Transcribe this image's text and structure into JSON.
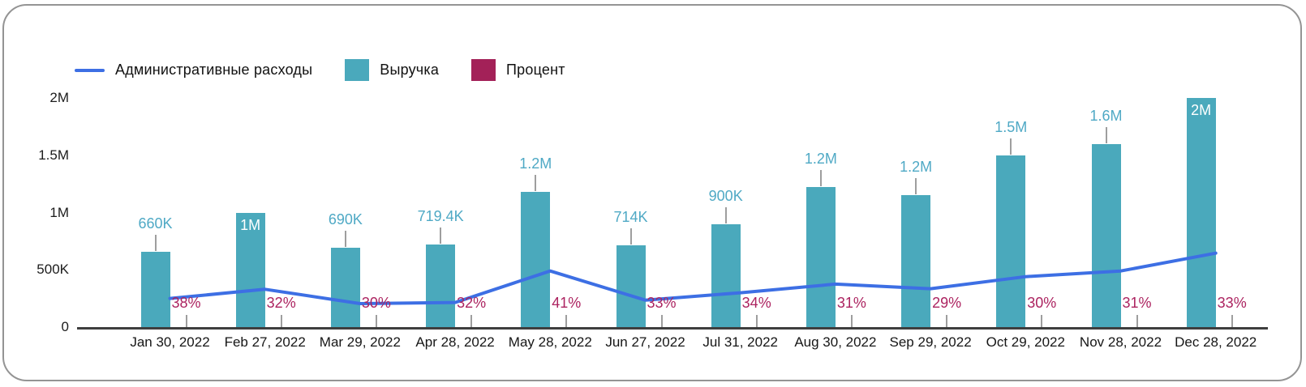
{
  "chart_data": {
    "type": "combo",
    "title": "",
    "grid": false,
    "legend_position": "top",
    "ylim": [
      0,
      2000000
    ],
    "y_ticks": [
      "0",
      "500K",
      "1M",
      "1.5M",
      "2M"
    ],
    "x_labels": [
      "Jan 30, 2022",
      "Feb 27, 2022",
      "Mar 29, 2022",
      "Apr 28, 2022",
      "May 28, 2022",
      "Jun 27, 2022",
      "Jul 31, 2022",
      "Aug 30, 2022",
      "Sep 29, 2022",
      "Oct 29, 2022",
      "Nov 28, 2022",
      "Dec 28, 2022"
    ],
    "series": [
      {
        "name": "Административные расходы",
        "type": "line",
        "color": "#3D6FE4",
        "values": [
          250000,
          330000,
          205000,
          215000,
          490000,
          235000,
          300000,
          375000,
          335000,
          440000,
          490000,
          645000
        ]
      },
      {
        "name": "Выручка",
        "type": "bar",
        "color": "#4AA9BC",
        "label_color": "#4FA9C5",
        "values": [
          660000,
          1000000,
          690000,
          719400,
          1180000,
          714000,
          900000,
          1220000,
          1150000,
          1500000,
          1600000,
          2000000
        ],
        "labels": [
          "660K",
          "1M",
          "690K",
          "719.4K",
          "1.2M",
          "714K",
          "900K",
          "1.2M",
          "1.2M",
          "1.5M",
          "1.6M",
          "2M"
        ],
        "label_inside": [
          false,
          true,
          false,
          false,
          false,
          false,
          false,
          false,
          false,
          false,
          false,
          true
        ]
      },
      {
        "name": "Процент",
        "type": "bar",
        "color": "#A32158",
        "label_color": "#AC2360",
        "values": [
          38,
          32,
          30,
          32,
          41,
          33,
          34,
          31,
          29,
          30,
          31,
          33
        ],
        "labels": [
          "38%",
          "32%",
          "30%",
          "32%",
          "41%",
          "33%",
          "34%",
          "31%",
          "29%",
          "30%",
          "31%",
          "33%"
        ]
      }
    ]
  },
  "frame": {
    "border_color": "#949494",
    "background": "#ffffff"
  }
}
